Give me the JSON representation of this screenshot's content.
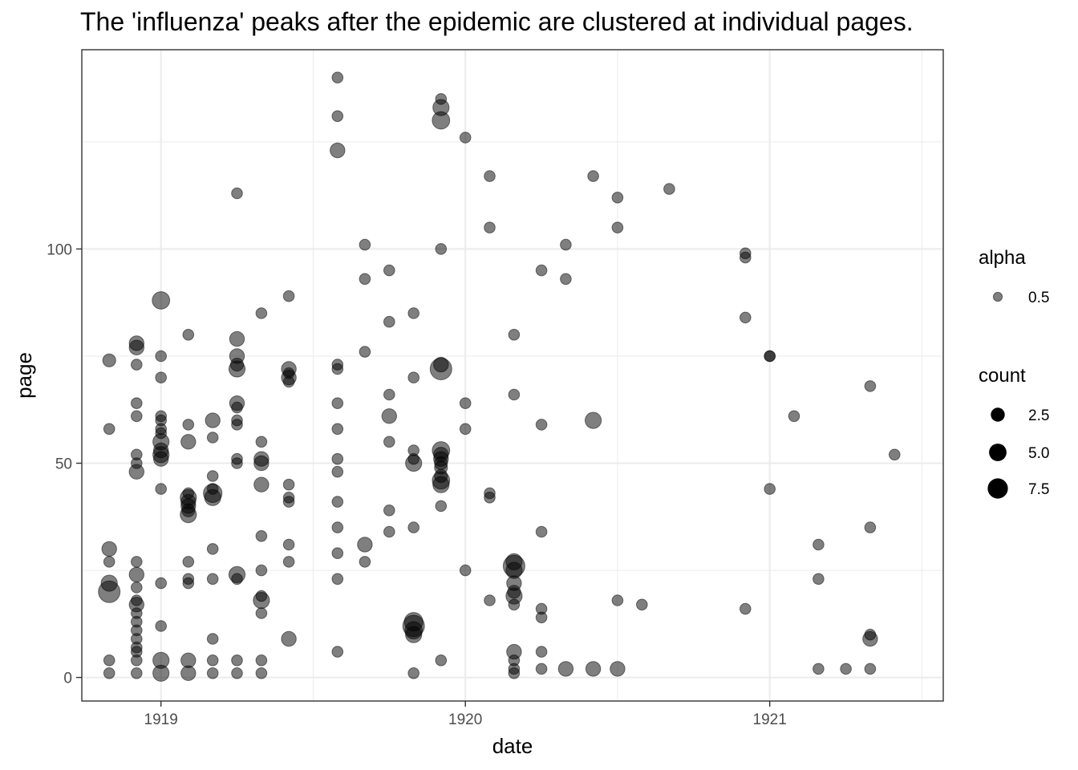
{
  "chart_data": {
    "type": "scatter",
    "title": "The 'influenza' peaks after the epidemic are clustered at individual pages.",
    "xlabel": "date",
    "ylabel": "page",
    "xlim": [
      1918.74,
      1921.57
    ],
    "ylim": [
      -5.5,
      146.5
    ],
    "x_ticks": [
      1919,
      1920,
      1921
    ],
    "y_ticks": [
      0,
      50,
      100
    ],
    "x_minor": [
      1919.5,
      1920.5,
      1921.5
    ],
    "y_minor": [
      25,
      75,
      125
    ],
    "grid": true,
    "point_color": "#000000",
    "point_alpha": 0.5,
    "legend_position": "right",
    "legend": {
      "alpha": {
        "title": "alpha",
        "labels": [
          "0.5"
        ]
      },
      "count": {
        "title": "count",
        "labels": [
          "2.5",
          "5.0",
          "7.5"
        ],
        "values": [
          2.5,
          5.0,
          7.5
        ]
      }
    },
    "points": [
      [
        1918.83,
        74,
        2
      ],
      [
        1918.83,
        58,
        1
      ],
      [
        1918.83,
        30,
        3
      ],
      [
        1918.83,
        27,
        1
      ],
      [
        1918.83,
        22,
        4
      ],
      [
        1918.83,
        20,
        9
      ],
      [
        1918.83,
        4,
        1
      ],
      [
        1918.83,
        1,
        1
      ],
      [
        1918.92,
        78,
        3
      ],
      [
        1918.92,
        77,
        3
      ],
      [
        1918.92,
        73,
        1
      ],
      [
        1918.92,
        64,
        1
      ],
      [
        1918.92,
        61,
        1
      ],
      [
        1918.92,
        52,
        1
      ],
      [
        1918.92,
        50,
        1
      ],
      [
        1918.92,
        48,
        3
      ],
      [
        1918.92,
        27,
        1
      ],
      [
        1918.92,
        24,
        3
      ],
      [
        1918.92,
        21,
        1
      ],
      [
        1918.92,
        18,
        1
      ],
      [
        1918.92,
        17,
        3
      ],
      [
        1918.92,
        15,
        1
      ],
      [
        1918.92,
        13,
        1
      ],
      [
        1918.92,
        11,
        1
      ],
      [
        1918.92,
        9,
        1
      ],
      [
        1918.92,
        7,
        1
      ],
      [
        1918.92,
        6,
        1
      ],
      [
        1918.92,
        4,
        1
      ],
      [
        1918.92,
        1,
        1
      ],
      [
        1919.0,
        88,
        5
      ],
      [
        1919.0,
        75,
        1
      ],
      [
        1919.0,
        70,
        1
      ],
      [
        1919.0,
        61,
        1
      ],
      [
        1919.0,
        60,
        1
      ],
      [
        1919.0,
        58,
        1
      ],
      [
        1919.0,
        57,
        1
      ],
      [
        1919.0,
        55,
        4
      ],
      [
        1919.0,
        53,
        3
      ],
      [
        1919.0,
        52,
        4
      ],
      [
        1919.0,
        51,
        3
      ],
      [
        1919.0,
        44,
        1
      ],
      [
        1919.0,
        22,
        1
      ],
      [
        1919.0,
        12,
        1
      ],
      [
        1919.0,
        4,
        4
      ],
      [
        1919.0,
        1,
        4
      ],
      [
        1919.09,
        80,
        1
      ],
      [
        1919.09,
        59,
        1
      ],
      [
        1919.09,
        55,
        3
      ],
      [
        1919.09,
        43,
        1
      ],
      [
        1919.09,
        42,
        4
      ],
      [
        1919.09,
        41,
        3
      ],
      [
        1919.09,
        40,
        3
      ],
      [
        1919.09,
        39,
        2
      ],
      [
        1919.09,
        38,
        4
      ],
      [
        1919.09,
        27,
        1
      ],
      [
        1919.09,
        23,
        1
      ],
      [
        1919.09,
        22,
        1
      ],
      [
        1919.09,
        4,
        3
      ],
      [
        1919.09,
        1,
        3
      ],
      [
        1919.17,
        60,
        3
      ],
      [
        1919.17,
        56,
        1
      ],
      [
        1919.17,
        47,
        1
      ],
      [
        1919.17,
        44,
        1
      ],
      [
        1919.17,
        43,
        6
      ],
      [
        1919.17,
        42,
        4
      ],
      [
        1919.17,
        30,
        1
      ],
      [
        1919.17,
        23,
        1
      ],
      [
        1919.17,
        9,
        1
      ],
      [
        1919.17,
        4,
        1
      ],
      [
        1919.17,
        1,
        1
      ],
      [
        1919.25,
        113,
        1
      ],
      [
        1919.25,
        79,
        3
      ],
      [
        1919.25,
        75,
        3
      ],
      [
        1919.25,
        73,
        2
      ],
      [
        1919.25,
        72,
        4
      ],
      [
        1919.25,
        64,
        3
      ],
      [
        1919.25,
        63,
        1
      ],
      [
        1919.25,
        60,
        1
      ],
      [
        1919.25,
        59,
        1
      ],
      [
        1919.25,
        51,
        1
      ],
      [
        1919.25,
        50,
        1
      ],
      [
        1919.25,
        24,
        4
      ],
      [
        1919.25,
        23,
        1
      ],
      [
        1919.25,
        4,
        1
      ],
      [
        1919.25,
        1,
        1
      ],
      [
        1919.33,
        85,
        1
      ],
      [
        1919.33,
        55,
        1
      ],
      [
        1919.33,
        51,
        3
      ],
      [
        1919.33,
        50,
        3
      ],
      [
        1919.33,
        45,
        3
      ],
      [
        1919.33,
        33,
        1
      ],
      [
        1919.33,
        25,
        1
      ],
      [
        1919.33,
        19,
        1
      ],
      [
        1919.33,
        18,
        4
      ],
      [
        1919.33,
        15,
        1
      ],
      [
        1919.33,
        4,
        1
      ],
      [
        1919.33,
        1,
        1
      ],
      [
        1919.42,
        89,
        1
      ],
      [
        1919.42,
        72,
        3
      ],
      [
        1919.42,
        71,
        1
      ],
      [
        1919.42,
        70,
        3
      ],
      [
        1919.42,
        69,
        1
      ],
      [
        1919.42,
        45,
        1
      ],
      [
        1919.42,
        42,
        1
      ],
      [
        1919.42,
        41,
        1
      ],
      [
        1919.42,
        31,
        1
      ],
      [
        1919.42,
        27,
        1
      ],
      [
        1919.42,
        9,
        3
      ],
      [
        1919.58,
        140,
        1
      ],
      [
        1919.58,
        131,
        1
      ],
      [
        1919.58,
        123,
        3
      ],
      [
        1919.58,
        73,
        1
      ],
      [
        1919.58,
        72,
        1
      ],
      [
        1919.58,
        64,
        1
      ],
      [
        1919.58,
        58,
        1
      ],
      [
        1919.58,
        51,
        1
      ],
      [
        1919.58,
        48,
        1
      ],
      [
        1919.58,
        41,
        1
      ],
      [
        1919.58,
        35,
        1
      ],
      [
        1919.58,
        29,
        1
      ],
      [
        1919.58,
        23,
        1
      ],
      [
        1919.58,
        6,
        1
      ],
      [
        1919.67,
        101,
        1
      ],
      [
        1919.67,
        93,
        1
      ],
      [
        1919.67,
        76,
        1
      ],
      [
        1919.67,
        31,
        3
      ],
      [
        1919.67,
        27,
        1
      ],
      [
        1919.75,
        95,
        1
      ],
      [
        1919.75,
        83,
        1
      ],
      [
        1919.75,
        66,
        1
      ],
      [
        1919.75,
        61,
        3
      ],
      [
        1919.75,
        55,
        1
      ],
      [
        1919.75,
        39,
        1
      ],
      [
        1919.75,
        34,
        1
      ],
      [
        1919.83,
        85,
        1
      ],
      [
        1919.83,
        70,
        1
      ],
      [
        1919.83,
        53,
        1
      ],
      [
        1919.83,
        51,
        1
      ],
      [
        1919.83,
        50,
        4
      ],
      [
        1919.83,
        35,
        1
      ],
      [
        1919.83,
        13,
        6
      ],
      [
        1919.83,
        12,
        9
      ],
      [
        1919.83,
        11,
        5
      ],
      [
        1919.83,
        10,
        4
      ],
      [
        1919.83,
        1,
        1
      ],
      [
        1919.92,
        135,
        1
      ],
      [
        1919.92,
        133,
        4
      ],
      [
        1919.92,
        130,
        5
      ],
      [
        1919.92,
        100,
        1
      ],
      [
        1919.92,
        73,
        3
      ],
      [
        1919.92,
        72,
        9
      ],
      [
        1919.92,
        53,
        5
      ],
      [
        1919.92,
        52,
        3
      ],
      [
        1919.92,
        51,
        3
      ],
      [
        1919.92,
        50,
        2
      ],
      [
        1919.92,
        49,
        2
      ],
      [
        1919.92,
        47,
        2
      ],
      [
        1919.92,
        46,
        5
      ],
      [
        1919.92,
        45,
        4
      ],
      [
        1919.92,
        40,
        1
      ],
      [
        1919.92,
        4,
        1
      ],
      [
        1920.0,
        126,
        1
      ],
      [
        1920.0,
        64,
        1
      ],
      [
        1920.0,
        58,
        1
      ],
      [
        1920.0,
        25,
        1
      ],
      [
        1920.08,
        117,
        1
      ],
      [
        1920.08,
        105,
        1
      ],
      [
        1920.08,
        43,
        1
      ],
      [
        1920.08,
        42,
        1
      ],
      [
        1920.08,
        18,
        1
      ],
      [
        1920.16,
        80,
        1
      ],
      [
        1920.16,
        66,
        1
      ],
      [
        1920.16,
        27,
        4
      ],
      [
        1920.16,
        26,
        9
      ],
      [
        1920.16,
        25,
        4
      ],
      [
        1920.16,
        22,
        3
      ],
      [
        1920.16,
        20,
        2
      ],
      [
        1920.16,
        19,
        4
      ],
      [
        1920.16,
        17,
        1
      ],
      [
        1920.16,
        6,
        3
      ],
      [
        1920.16,
        4,
        1
      ],
      [
        1920.16,
        2,
        1
      ],
      [
        1920.16,
        1,
        1
      ],
      [
        1920.25,
        95,
        1
      ],
      [
        1920.25,
        59,
        1
      ],
      [
        1920.25,
        34,
        1
      ],
      [
        1920.25,
        16,
        1
      ],
      [
        1920.25,
        14,
        1
      ],
      [
        1920.25,
        6,
        1
      ],
      [
        1920.25,
        2,
        1
      ],
      [
        1920.33,
        101,
        1
      ],
      [
        1920.33,
        93,
        1
      ],
      [
        1920.33,
        2,
        3
      ],
      [
        1920.42,
        117,
        1
      ],
      [
        1920.42,
        60,
        4
      ],
      [
        1920.42,
        2,
        3
      ],
      [
        1920.5,
        112,
        1
      ],
      [
        1920.5,
        105,
        1
      ],
      [
        1920.5,
        18,
        1
      ],
      [
        1920.5,
        2,
        3
      ],
      [
        1920.58,
        17,
        1
      ],
      [
        1920.67,
        114,
        1
      ],
      [
        1920.92,
        99,
        1
      ],
      [
        1920.92,
        98,
        1
      ],
      [
        1920.92,
        84,
        1
      ],
      [
        1920.92,
        16,
        1
      ],
      [
        1921.0,
        75,
        1
      ],
      [
        1921.0,
        75,
        1
      ],
      [
        1921.0,
        44,
        1
      ],
      [
        1921.08,
        61,
        1
      ],
      [
        1921.16,
        31,
        1
      ],
      [
        1921.16,
        23,
        1
      ],
      [
        1921.16,
        2,
        1
      ],
      [
        1921.25,
        2,
        1
      ],
      [
        1921.33,
        68,
        1
      ],
      [
        1921.33,
        35,
        1
      ],
      [
        1921.33,
        10,
        1
      ],
      [
        1921.33,
        9,
        3
      ],
      [
        1921.33,
        2,
        1
      ],
      [
        1921.41,
        52,
        1
      ]
    ]
  }
}
